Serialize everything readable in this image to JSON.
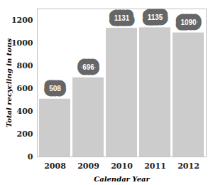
{
  "chart_data": {
    "type": "bar",
    "categories": [
      "2008",
      "2009",
      "2010",
      "2011",
      "2012"
    ],
    "values": [
      508,
      696,
      1131,
      1135,
      1090
    ],
    "color": "#cccccc",
    "x_label": "Calendar Year",
    "y_label": "Total recycling in tons",
    "ylim": [
      0,
      1300
    ],
    "yticks": [
      0,
      200,
      400,
      600,
      800,
      1000,
      1200
    ],
    "grid": false,
    "data_labels": true
  }
}
